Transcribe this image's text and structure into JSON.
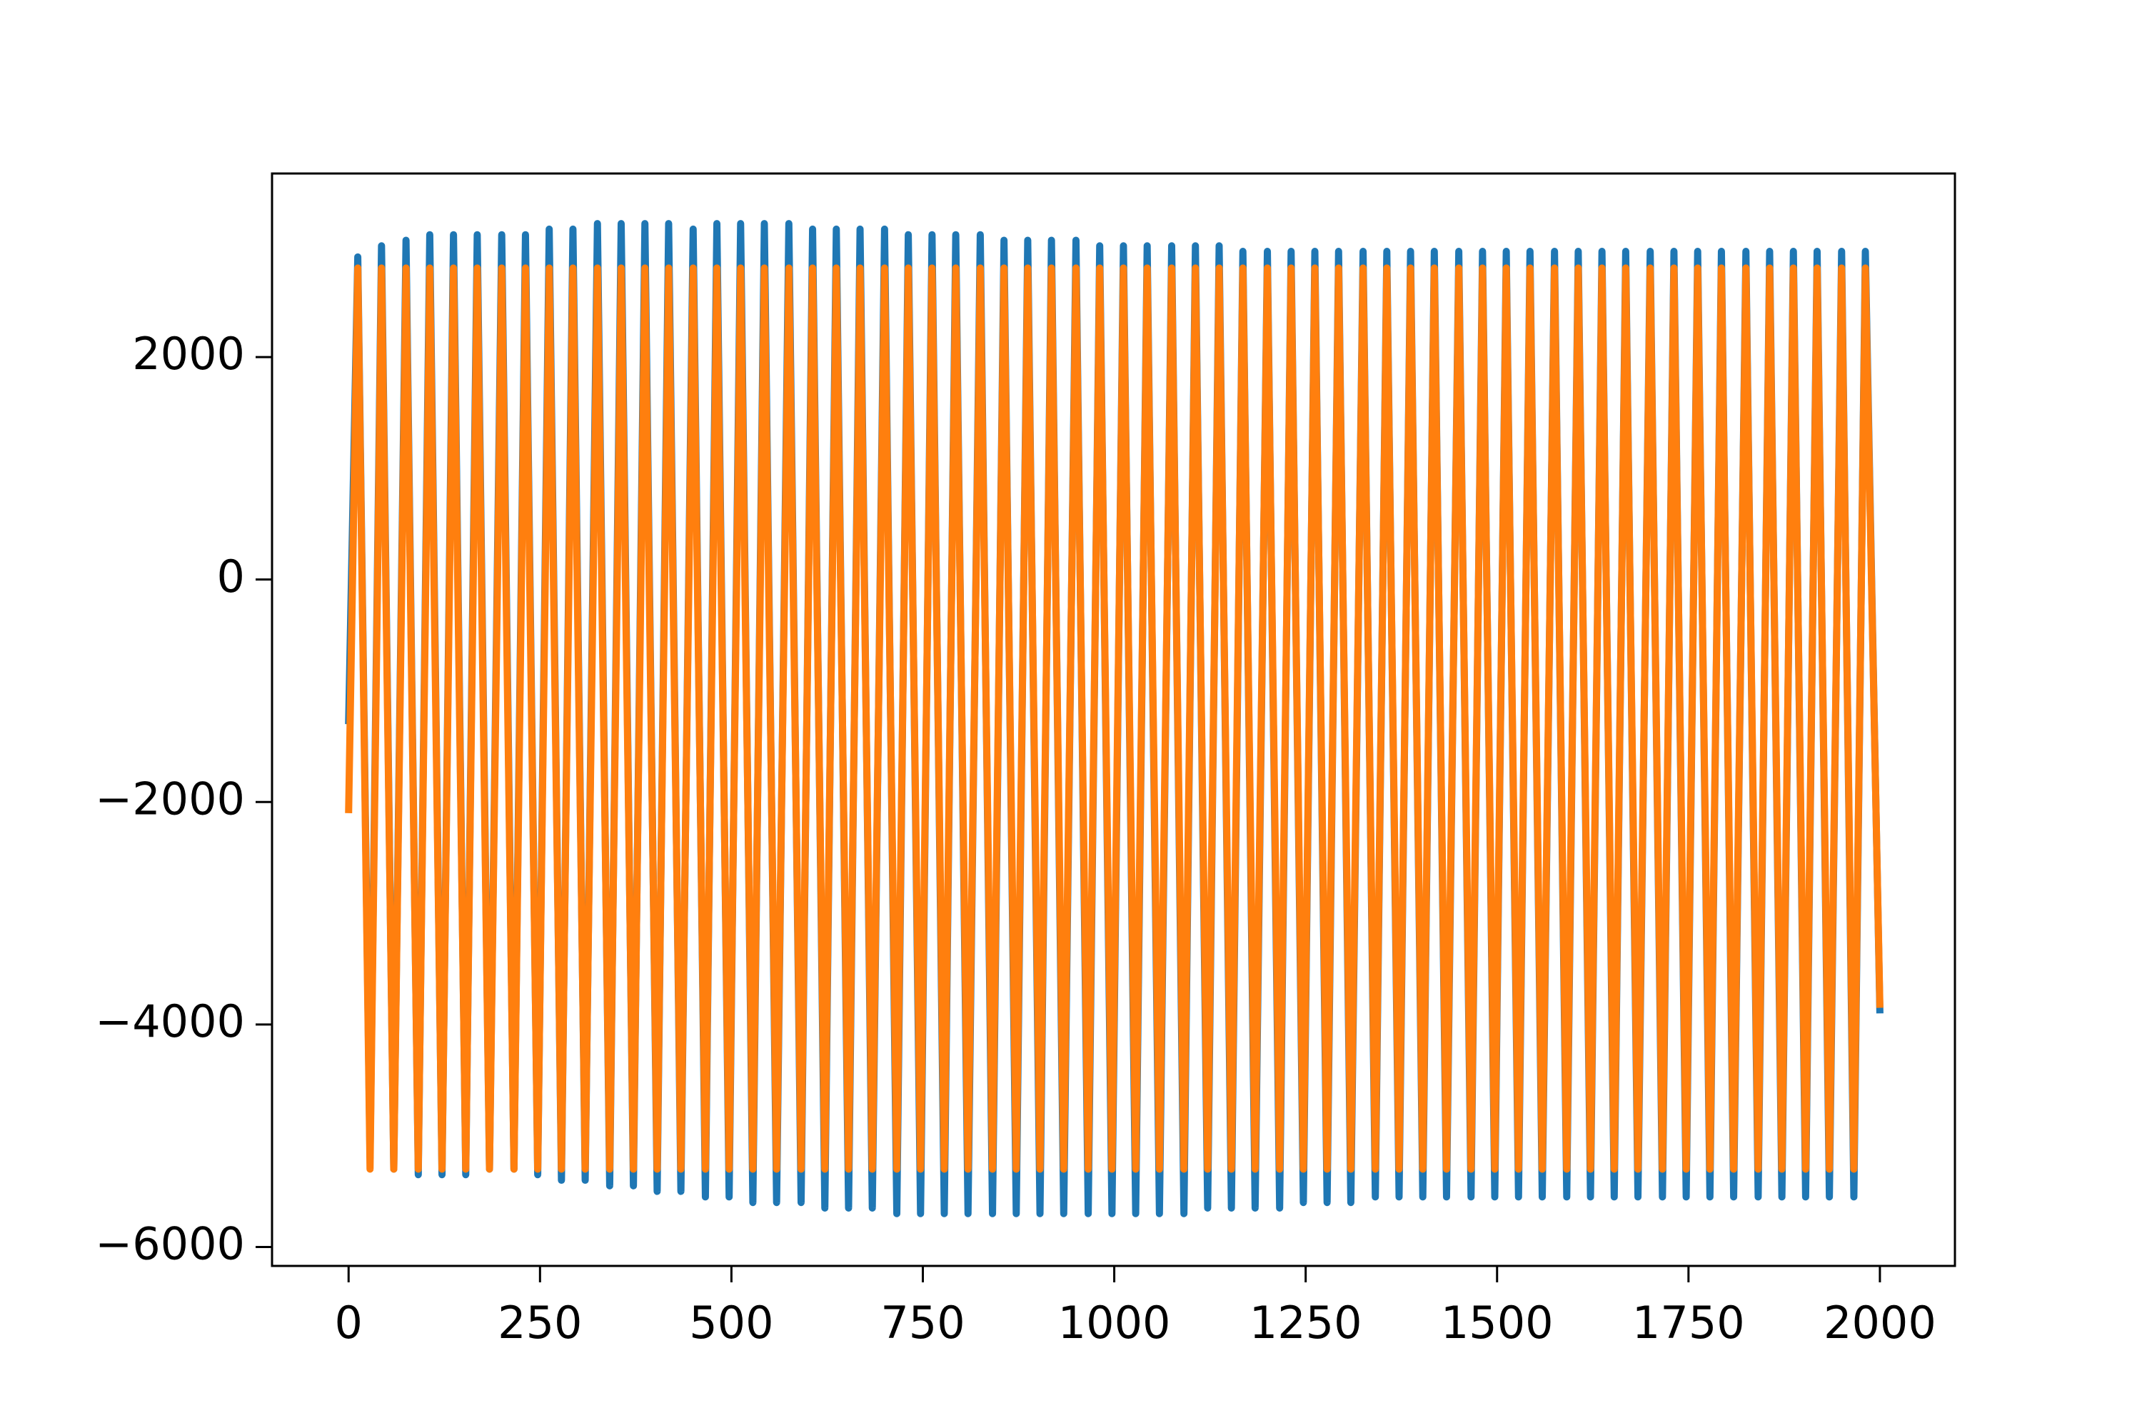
{
  "chart_data": {
    "type": "line",
    "x": [
      0,
      12,
      28,
      43,
      59,
      75,
      91,
      106,
      122,
      137,
      153,
      168,
      184,
      200,
      216,
      231,
      247,
      262,
      278,
      293,
      309,
      325,
      341,
      356,
      372,
      387,
      403,
      418,
      434,
      450,
      466,
      481,
      497,
      512,
      528,
      543,
      559,
      575,
      591,
      606,
      622,
      637,
      653,
      668,
      684,
      700,
      716,
      731,
      747,
      762,
      778,
      793,
      809,
      825,
      841,
      856,
      872,
      887,
      903,
      918,
      934,
      950,
      966,
      981,
      997,
      1012,
      1028,
      1043,
      1059,
      1075,
      1091,
      1106,
      1122,
      1137,
      1153,
      1168,
      1184,
      1200,
      1216,
      1231,
      1247,
      1262,
      1278,
      1293,
      1309,
      1325,
      1341,
      1356,
      1372,
      1387,
      1403,
      1418,
      1434,
      1450,
      1466,
      1481,
      1497,
      1512,
      1528,
      1543,
      1559,
      1575,
      1591,
      1606,
      1622,
      1637,
      1653,
      1668,
      1684,
      1700,
      1716,
      1731,
      1747,
      1762,
      1778,
      1793,
      1809,
      1825,
      1841,
      1856,
      1872,
      1887,
      1903,
      1918,
      1934,
      1950,
      1966,
      1981,
      2000
    ],
    "series": [
      {
        "color": "#1f77b4",
        "values": [
          -1300,
          2900,
          -5200,
          3000,
          -5300,
          3050,
          -5350,
          3100,
          -5350,
          3100,
          -5350,
          3100,
          -5300,
          3100,
          -5300,
          3100,
          -5350,
          3150,
          -5400,
          3150,
          -5400,
          3200,
          -5450,
          3200,
          -5450,
          3200,
          -5500,
          3200,
          -5500,
          3150,
          -5550,
          3200,
          -5550,
          3200,
          -5600,
          3200,
          -5600,
          3200,
          -5600,
          3150,
          -5650,
          3150,
          -5650,
          3150,
          -5650,
          3150,
          -5700,
          3100,
          -5700,
          3100,
          -5700,
          3100,
          -5700,
          3100,
          -5700,
          3050,
          -5700,
          3050,
          -5700,
          3050,
          -5700,
          3050,
          -5700,
          3000,
          -5700,
          3000,
          -5700,
          3000,
          -5700,
          3000,
          -5700,
          3000,
          -5650,
          3000,
          -5650,
          2950,
          -5650,
          2950,
          -5650,
          2950,
          -5600,
          2950,
          -5600,
          2950,
          -5600,
          2950,
          -5550,
          2950,
          -5550,
          2950,
          -5550,
          2950,
          -5550,
          2950,
          -5550,
          2950,
          -5550,
          2950,
          -5550,
          2950,
          -5550,
          2950,
          -5550,
          2950,
          -5550,
          2950,
          -5550,
          2950,
          -5550,
          2950,
          -5550,
          2950,
          -5550,
          2950,
          -5550,
          2950,
          -5550,
          2950,
          -5550,
          2950,
          -5550,
          2950,
          -5550,
          2950,
          -5550,
          2950,
          -5550,
          2950,
          -3900
        ]
      },
      {
        "color": "#ff7f0e",
        "values": [
          -2100,
          2800,
          -5300,
          2800,
          -5300,
          2800,
          -5300,
          2800,
          -5300,
          2800,
          -5300,
          2800,
          -5300,
          2800,
          -5300,
          2800,
          -5300,
          2800,
          -5300,
          2800,
          -5300,
          2800,
          -5300,
          2800,
          -5300,
          2800,
          -5300,
          2800,
          -5300,
          2800,
          -5300,
          2800,
          -5300,
          2800,
          -5300,
          2800,
          -5300,
          2800,
          -5300,
          2800,
          -5300,
          2800,
          -5300,
          2800,
          -5300,
          2800,
          -5300,
          2800,
          -5300,
          2800,
          -5300,
          2800,
          -5300,
          2800,
          -5300,
          2800,
          -5300,
          2800,
          -5300,
          2800,
          -5300,
          2800,
          -5300,
          2800,
          -5300,
          2800,
          -5300,
          2800,
          -5300,
          2800,
          -5300,
          2800,
          -5300,
          2800,
          -5300,
          2800,
          -5300,
          2800,
          -5300,
          2800,
          -5300,
          2800,
          -5300,
          2800,
          -5300,
          2800,
          -5300,
          2800,
          -5300,
          2800,
          -5300,
          2800,
          -5300,
          2800,
          -5300,
          2800,
          -5300,
          2800,
          -5300,
          2800,
          -5300,
          2800,
          -5300,
          2800,
          -5300,
          2800,
          -5300,
          2800,
          -5300,
          2800,
          -5300,
          2800,
          -5300,
          2800,
          -5300,
          2800,
          -5300,
          2800,
          -5300,
          2800,
          -5300,
          2800,
          -5300,
          2800,
          -5300,
          2800,
          -5300,
          2800,
          -3850
        ]
      }
    ],
    "xlim": [
      -100,
      2098
    ],
    "ylim": [
      -6170,
      3650
    ],
    "xticks": [
      0,
      250,
      500,
      750,
      1000,
      1250,
      1500,
      1750,
      2000
    ],
    "yticks": [
      {
        "value": -6000,
        "label": "−6000"
      },
      {
        "value": -4000,
        "label": "−4000"
      },
      {
        "value": -2000,
        "label": "−2000"
      },
      0,
      2000
    ],
    "grid": false
  }
}
